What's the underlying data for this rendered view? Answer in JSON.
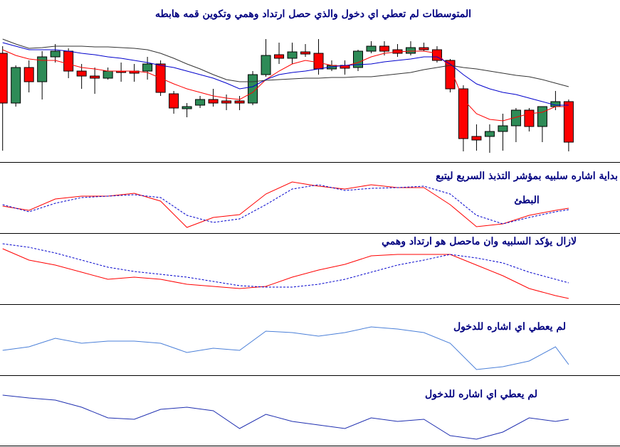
{
  "chart_data": [
    {
      "type": "candlestick",
      "title": "المتوسطات لم تعطي اي دخول والذي حصل ارتداد وهمي وتكوين قمه هابطه",
      "x": [
        0,
        1,
        2,
        3,
        4,
        5,
        6,
        7,
        8,
        9,
        10,
        11,
        12,
        13,
        14,
        15,
        16,
        17,
        18,
        19,
        20,
        21,
        22,
        23,
        24,
        25,
        26,
        27,
        28,
        29,
        30,
        31,
        32,
        33,
        34,
        35,
        36,
        37,
        38,
        39,
        40,
        41,
        42,
        43
      ],
      "open": [
        155,
        85,
        135,
        115,
        150,
        158,
        130,
        123,
        120,
        130,
        130,
        130,
        140,
        98,
        77,
        82,
        90,
        88,
        88,
        85,
        125,
        153,
        148,
        157,
        155,
        133,
        138,
        135,
        158,
        165,
        160,
        155,
        163,
        160,
        145,
        105,
        38,
        38,
        45,
        53,
        75,
        52,
        80,
        87
      ],
      "high": [
        165,
        138,
        145,
        158,
        168,
        162,
        140,
        135,
        135,
        142,
        140,
        150,
        145,
        102,
        85,
        95,
        105,
        97,
        95,
        130,
        175,
        170,
        170,
        168,
        175,
        145,
        145,
        160,
        172,
        172,
        168,
        172,
        170,
        165,
        147,
        110,
        55,
        55,
        70,
        78,
        78,
        80,
        102,
        90
      ],
      "low": [
        18,
        80,
        100,
        90,
        142,
        120,
        105,
        98,
        118,
        115,
        115,
        118,
        95,
        70,
        65,
        78,
        80,
        75,
        75,
        82,
        122,
        140,
        140,
        150,
        125,
        130,
        125,
        130,
        155,
        152,
        150,
        152,
        158,
        142,
        100,
        17,
        18,
        15,
        18,
        30,
        45,
        30,
        75,
        17
      ],
      "close": [
        85,
        135,
        115,
        150,
        158,
        130,
        123,
        120,
        130,
        128,
        127,
        140,
        100,
        78,
        80,
        90,
        85,
        85,
        85,
        125,
        152,
        148,
        157,
        154,
        133,
        138,
        134,
        158,
        165,
        158,
        155,
        163,
        160,
        145,
        105,
        35,
        33,
        45,
        53,
        75,
        52,
        80,
        87,
        30
      ],
      "up_color": "#2e8b57",
      "down_color": "#ff0000",
      "series": [
        {
          "color": "#ff0000",
          "dashed": false,
          "values": [
            160,
            152,
            147,
            145,
            145,
            140,
            135,
            133,
            130,
            130,
            130,
            128,
            120,
            112,
            105,
            100,
            95,
            92,
            90,
            100,
            118,
            130,
            140,
            145,
            142,
            138,
            137,
            142,
            150,
            155,
            157,
            158,
            158,
            155,
            135,
            90,
            70,
            62,
            60,
            65,
            70,
            72,
            80,
            80
          ]
        },
        {
          "color": "#0000cc",
          "dashed": false,
          "values": [
            170,
            165,
            160,
            160,
            160,
            158,
            155,
            153,
            150,
            148,
            145,
            142,
            138,
            135,
            130,
            125,
            120,
            113,
            105,
            108,
            118,
            125,
            128,
            130,
            133,
            136,
            138,
            139,
            140,
            143,
            145,
            147,
            150,
            150,
            140,
            125,
            112,
            105,
            100,
            97,
            92,
            87,
            82,
            82
          ]
        },
        {
          "color": "#333333",
          "dashed": false,
          "values": [
            175,
            168,
            162,
            163,
            165,
            165,
            165,
            164,
            164,
            163,
            162,
            160,
            155,
            148,
            140,
            133,
            125,
            118,
            115,
            115,
            117,
            118,
            119,
            120,
            120,
            121,
            121,
            122,
            122,
            124,
            126,
            128,
            132,
            135,
            138,
            135,
            133,
            130,
            127,
            124,
            122,
            118,
            113,
            108
          ]
        }
      ],
      "xlim": [
        -0.2,
        46.9
      ],
      "ylim": [
        0,
        230
      ]
    },
    {
      "type": "line",
      "annotations": [
        "بداية اشاره سلبيه بمؤشر التذبذ السريع ليتبع",
        "البطئ"
      ],
      "x": [
        0,
        2,
        4,
        6,
        8,
        10,
        12,
        14,
        16,
        18,
        20,
        22,
        24,
        26,
        28,
        30,
        32,
        34,
        36,
        38,
        40,
        42,
        43
      ],
      "series": [
        {
          "color": "#ff0000",
          "dashed": false,
          "values": [
            38,
            32,
            48,
            52,
            52,
            56,
            45,
            8,
            22,
            26,
            55,
            72,
            66,
            62,
            68,
            64,
            64,
            40,
            9,
            13,
            25,
            32,
            35
          ]
        },
        {
          "color": "#0000cc",
          "dashed": true,
          "values": [
            40,
            30,
            42,
            50,
            52,
            54,
            50,
            25,
            15,
            20,
            40,
            62,
            68,
            60,
            63,
            64,
            66,
            55,
            25,
            13,
            22,
            30,
            33
          ]
        }
      ],
      "xlim": [
        -0.2,
        46.9
      ],
      "ylim": [
        0,
        100
      ]
    },
    {
      "type": "line",
      "annotations": [
        "لازال يؤكد السلبيه وان ماحصل هو ارتداد وهمي"
      ],
      "x": [
        0,
        2,
        4,
        6,
        8,
        10,
        12,
        14,
        16,
        18,
        20,
        22,
        24,
        26,
        28,
        30,
        32,
        34,
        36,
        38,
        40,
        42,
        43
      ],
      "series": [
        {
          "color": "#ff0000",
          "dashed": false,
          "values": [
            78,
            62,
            55,
            45,
            35,
            38,
            35,
            28,
            25,
            22,
            25,
            38,
            48,
            56,
            68,
            70,
            70,
            70,
            55,
            40,
            22,
            12,
            8
          ]
        },
        {
          "color": "#0000cc",
          "dashed": true,
          "values": [
            85,
            80,
            72,
            62,
            52,
            46,
            42,
            38,
            32,
            26,
            24,
            24,
            28,
            35,
            45,
            55,
            62,
            70,
            65,
            58,
            45,
            35,
            30
          ]
        }
      ],
      "xlim": [
        -0.2,
        46.9
      ],
      "ylim": [
        0,
        100
      ]
    },
    {
      "type": "line",
      "annotations": [
        "لم يعطي اي اشاره للدخول"
      ],
      "x": [
        0,
        2,
        4,
        6,
        8,
        10,
        12,
        14,
        16,
        18,
        20,
        22,
        24,
        26,
        28,
        30,
        32,
        34,
        36,
        38,
        40,
        42,
        43
      ],
      "series": [
        {
          "color": "#4a7fd8",
          "dashed": false,
          "values": [
            35,
            40,
            52,
            45,
            48,
            48,
            45,
            32,
            38,
            35,
            62,
            60,
            55,
            60,
            68,
            65,
            60,
            45,
            8,
            12,
            20,
            40,
            15
          ]
        }
      ],
      "xlim": [
        -0.2,
        46.9
      ],
      "ylim": [
        0,
        100
      ]
    },
    {
      "type": "line",
      "annotations": [
        "لم يعطي اي اشاره للدخول"
      ],
      "x": [
        0,
        2,
        4,
        6,
        8,
        10,
        12,
        14,
        16,
        18,
        20,
        22,
        24,
        26,
        28,
        30,
        32,
        34,
        36,
        38,
        40,
        42,
        43
      ],
      "series": [
        {
          "color": "#1f2fb0",
          "dashed": false,
          "values": [
            72,
            68,
            65,
            55,
            40,
            38,
            52,
            55,
            50,
            25,
            45,
            35,
            30,
            25,
            40,
            35,
            38,
            15,
            10,
            20,
            40,
            35,
            38
          ]
        }
      ],
      "xlim": [
        -0.2,
        46.9
      ],
      "ylim": [
        0,
        100
      ]
    }
  ]
}
